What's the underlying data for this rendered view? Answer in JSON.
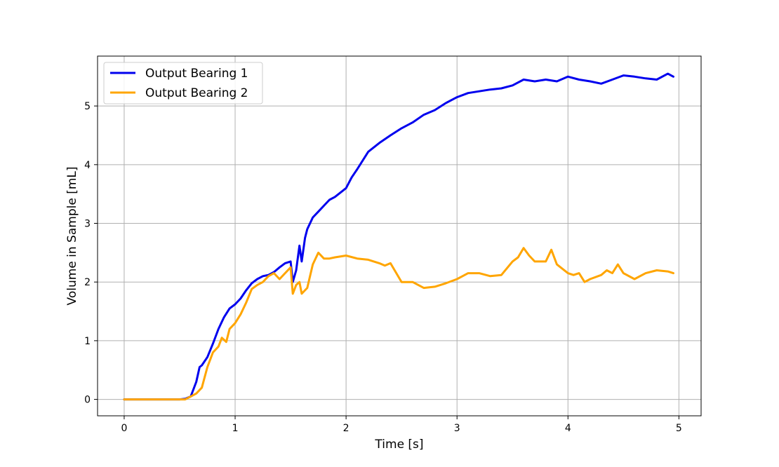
{
  "chart_data": {
    "type": "line",
    "title": "",
    "xlabel": "Time [s]",
    "ylabel": "Volume in Sample [mL]",
    "xlim": [
      -0.24,
      5.2
    ],
    "ylim": [
      -0.28,
      5.85
    ],
    "xticks": [
      0,
      1,
      2,
      3,
      4,
      5
    ],
    "yticks": [
      0,
      1,
      2,
      3,
      4,
      5
    ],
    "grid": true,
    "legend_position": "upper-left",
    "series": [
      {
        "name": "Output Bearing 1",
        "color": "#0000ee",
        "x": [
          0,
          0.1,
          0.2,
          0.3,
          0.4,
          0.5,
          0.55,
          0.6,
          0.65,
          0.68,
          0.7,
          0.75,
          0.8,
          0.85,
          0.9,
          0.95,
          1.0,
          1.05,
          1.1,
          1.15,
          1.2,
          1.25,
          1.3,
          1.35,
          1.4,
          1.45,
          1.5,
          1.52,
          1.55,
          1.58,
          1.6,
          1.63,
          1.65,
          1.7,
          1.75,
          1.8,
          1.85,
          1.9,
          2.0,
          2.05,
          2.1,
          2.2,
          2.3,
          2.4,
          2.5,
          2.6,
          2.7,
          2.8,
          2.9,
          3.0,
          3.1,
          3.2,
          3.3,
          3.4,
          3.5,
          3.6,
          3.7,
          3.8,
          3.9,
          4.0,
          4.1,
          4.2,
          4.3,
          4.4,
          4.5,
          4.6,
          4.7,
          4.8,
          4.9,
          4.95
        ],
        "y": [
          0,
          0,
          0,
          0,
          0,
          0,
          0.01,
          0.05,
          0.3,
          0.55,
          0.58,
          0.72,
          0.95,
          1.2,
          1.4,
          1.55,
          1.62,
          1.72,
          1.86,
          1.98,
          2.05,
          2.1,
          2.12,
          2.17,
          2.25,
          2.32,
          2.35,
          2.0,
          2.2,
          2.62,
          2.35,
          2.75,
          2.9,
          3.1,
          3.2,
          3.3,
          3.4,
          3.45,
          3.6,
          3.78,
          3.92,
          4.22,
          4.37,
          4.5,
          4.62,
          4.72,
          4.85,
          4.93,
          5.05,
          5.15,
          5.22,
          5.25,
          5.28,
          5.3,
          5.35,
          5.45,
          5.42,
          5.45,
          5.42,
          5.5,
          5.45,
          5.42,
          5.38,
          5.45,
          5.52,
          5.5,
          5.47,
          5.45,
          5.55,
          5.5
        ]
      },
      {
        "name": "Output Bearing 2",
        "color": "#ffa500",
        "x": [
          0,
          0.1,
          0.2,
          0.3,
          0.4,
          0.5,
          0.55,
          0.6,
          0.65,
          0.7,
          0.75,
          0.8,
          0.85,
          0.88,
          0.92,
          0.95,
          1.0,
          1.05,
          1.1,
          1.15,
          1.2,
          1.25,
          1.3,
          1.35,
          1.4,
          1.45,
          1.5,
          1.52,
          1.55,
          1.58,
          1.6,
          1.65,
          1.7,
          1.75,
          1.8,
          1.85,
          1.9,
          2.0,
          2.1,
          2.2,
          2.3,
          2.35,
          2.4,
          2.5,
          2.6,
          2.7,
          2.8,
          2.9,
          3.0,
          3.05,
          3.1,
          3.2,
          3.3,
          3.4,
          3.5,
          3.55,
          3.6,
          3.65,
          3.7,
          3.8,
          3.85,
          3.9,
          4.0,
          4.05,
          4.1,
          4.15,
          4.2,
          4.3,
          4.35,
          4.4,
          4.45,
          4.5,
          4.6,
          4.7,
          4.8,
          4.9,
          4.95
        ],
        "y": [
          0,
          0,
          0,
          0,
          0,
          0,
          0,
          0.05,
          0.1,
          0.2,
          0.55,
          0.8,
          0.9,
          1.05,
          0.98,
          1.2,
          1.3,
          1.45,
          1.65,
          1.88,
          1.95,
          2.0,
          2.1,
          2.15,
          2.05,
          2.15,
          2.25,
          1.8,
          1.95,
          2.0,
          1.8,
          1.9,
          2.3,
          2.5,
          2.4,
          2.4,
          2.42,
          2.45,
          2.4,
          2.38,
          2.32,
          2.28,
          2.32,
          2.0,
          2.0,
          1.9,
          1.92,
          1.98,
          2.05,
          2.1,
          2.15,
          2.15,
          2.1,
          2.12,
          2.35,
          2.42,
          2.58,
          2.45,
          2.35,
          2.35,
          2.55,
          2.3,
          2.15,
          2.12,
          2.15,
          2.0,
          2.05,
          2.12,
          2.2,
          2.15,
          2.3,
          2.15,
          2.05,
          2.15,
          2.2,
          2.18,
          2.15
        ]
      }
    ]
  }
}
